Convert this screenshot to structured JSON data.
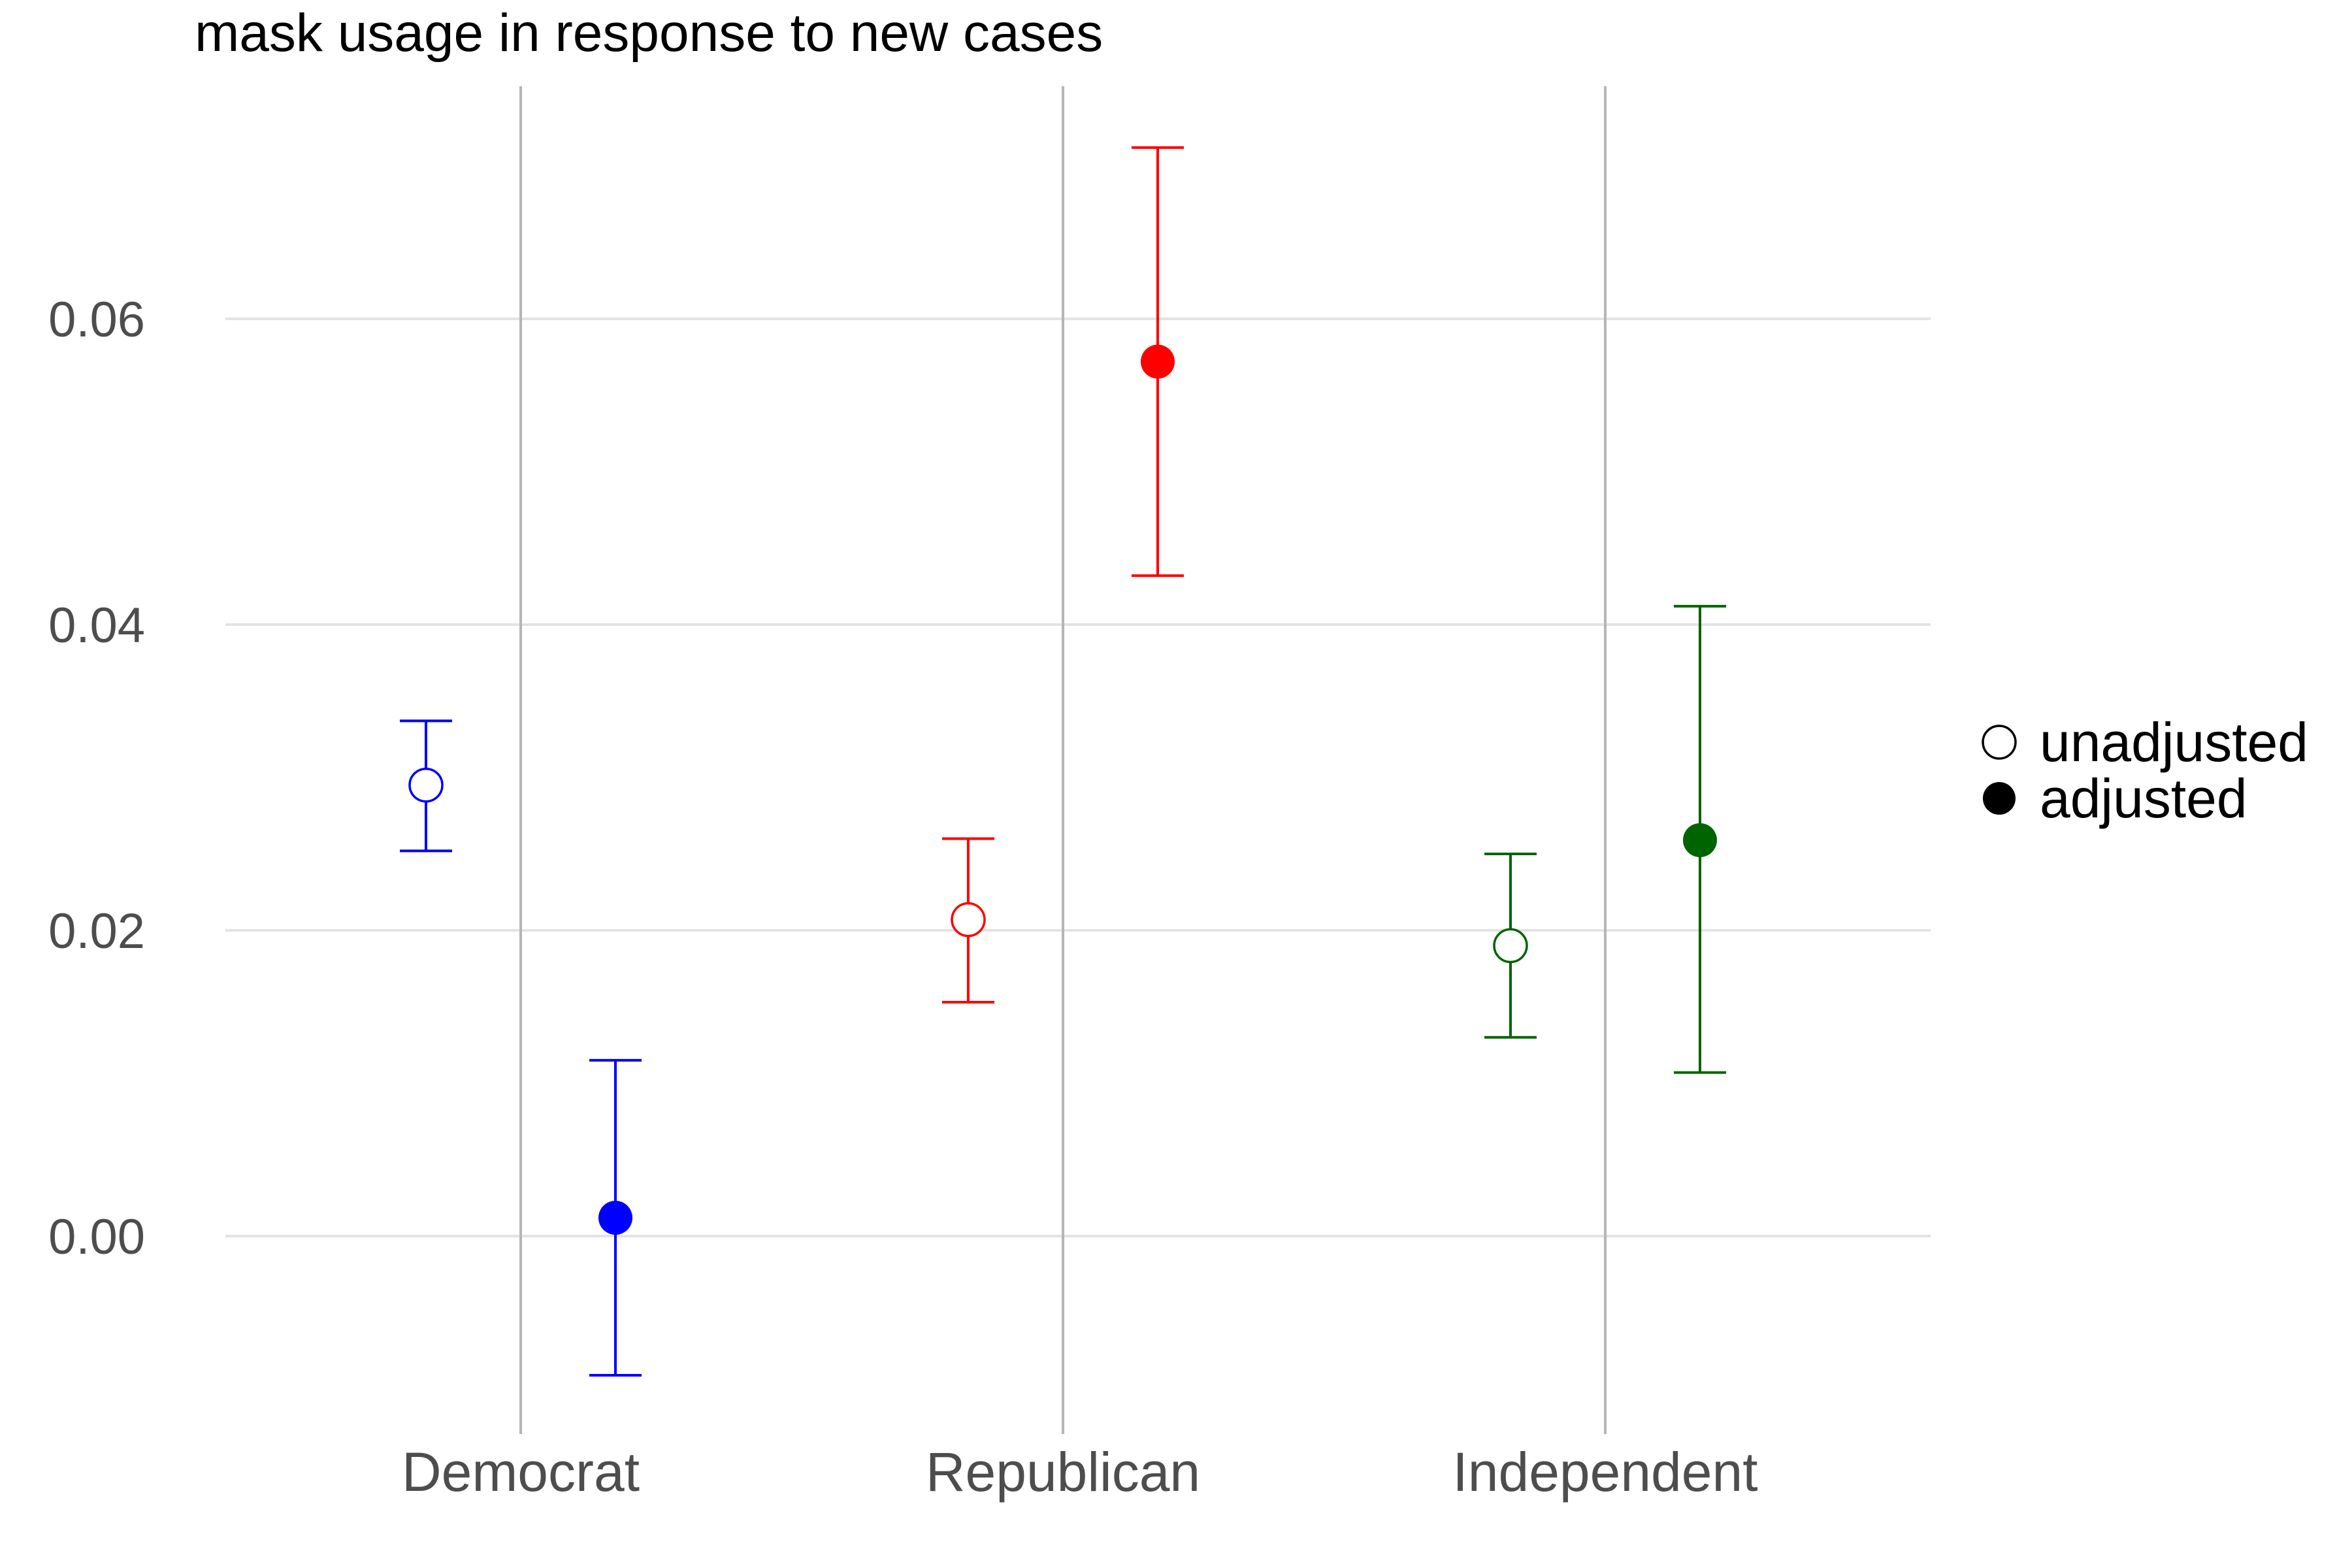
{
  "chart_data": {
    "type": "scatter",
    "title": "mask usage in response to new cases",
    "xlabel": "",
    "ylabel": "",
    "categories": [
      "Democrat",
      "Republican",
      "Independent"
    ],
    "y_ticks": [
      "0.00",
      "0.02",
      "0.04",
      "0.06"
    ],
    "ylim": [
      -0.013,
      0.075
    ],
    "grid": true,
    "legend_position": "right",
    "legend": [
      {
        "label": "unadjusted",
        "marker": "open-circle"
      },
      {
        "label": "adjusted",
        "marker": "filled-circle"
      }
    ],
    "series": [
      {
        "category": "Democrat",
        "color": "#0000ff",
        "points": [
          {
            "type": "unadjusted",
            "value": 0.0295,
            "lower": 0.0252,
            "upper": 0.0337
          },
          {
            "type": "adjusted",
            "value": 0.0012,
            "lower": -0.0091,
            "upper": 0.0115
          }
        ]
      },
      {
        "category": "Republican",
        "color": "#ff0000",
        "points": [
          {
            "type": "unadjusted",
            "value": 0.0207,
            "lower": 0.0153,
            "upper": 0.026
          },
          {
            "type": "adjusted",
            "value": 0.0572,
            "lower": 0.0432,
            "upper": 0.0712
          }
        ]
      },
      {
        "category": "Independent",
        "color": "#006400",
        "points": [
          {
            "type": "unadjusted",
            "value": 0.019,
            "lower": 0.013,
            "upper": 0.025
          },
          {
            "type": "adjusted",
            "value": 0.0259,
            "lower": 0.0107,
            "upper": 0.0412
          }
        ]
      }
    ]
  }
}
